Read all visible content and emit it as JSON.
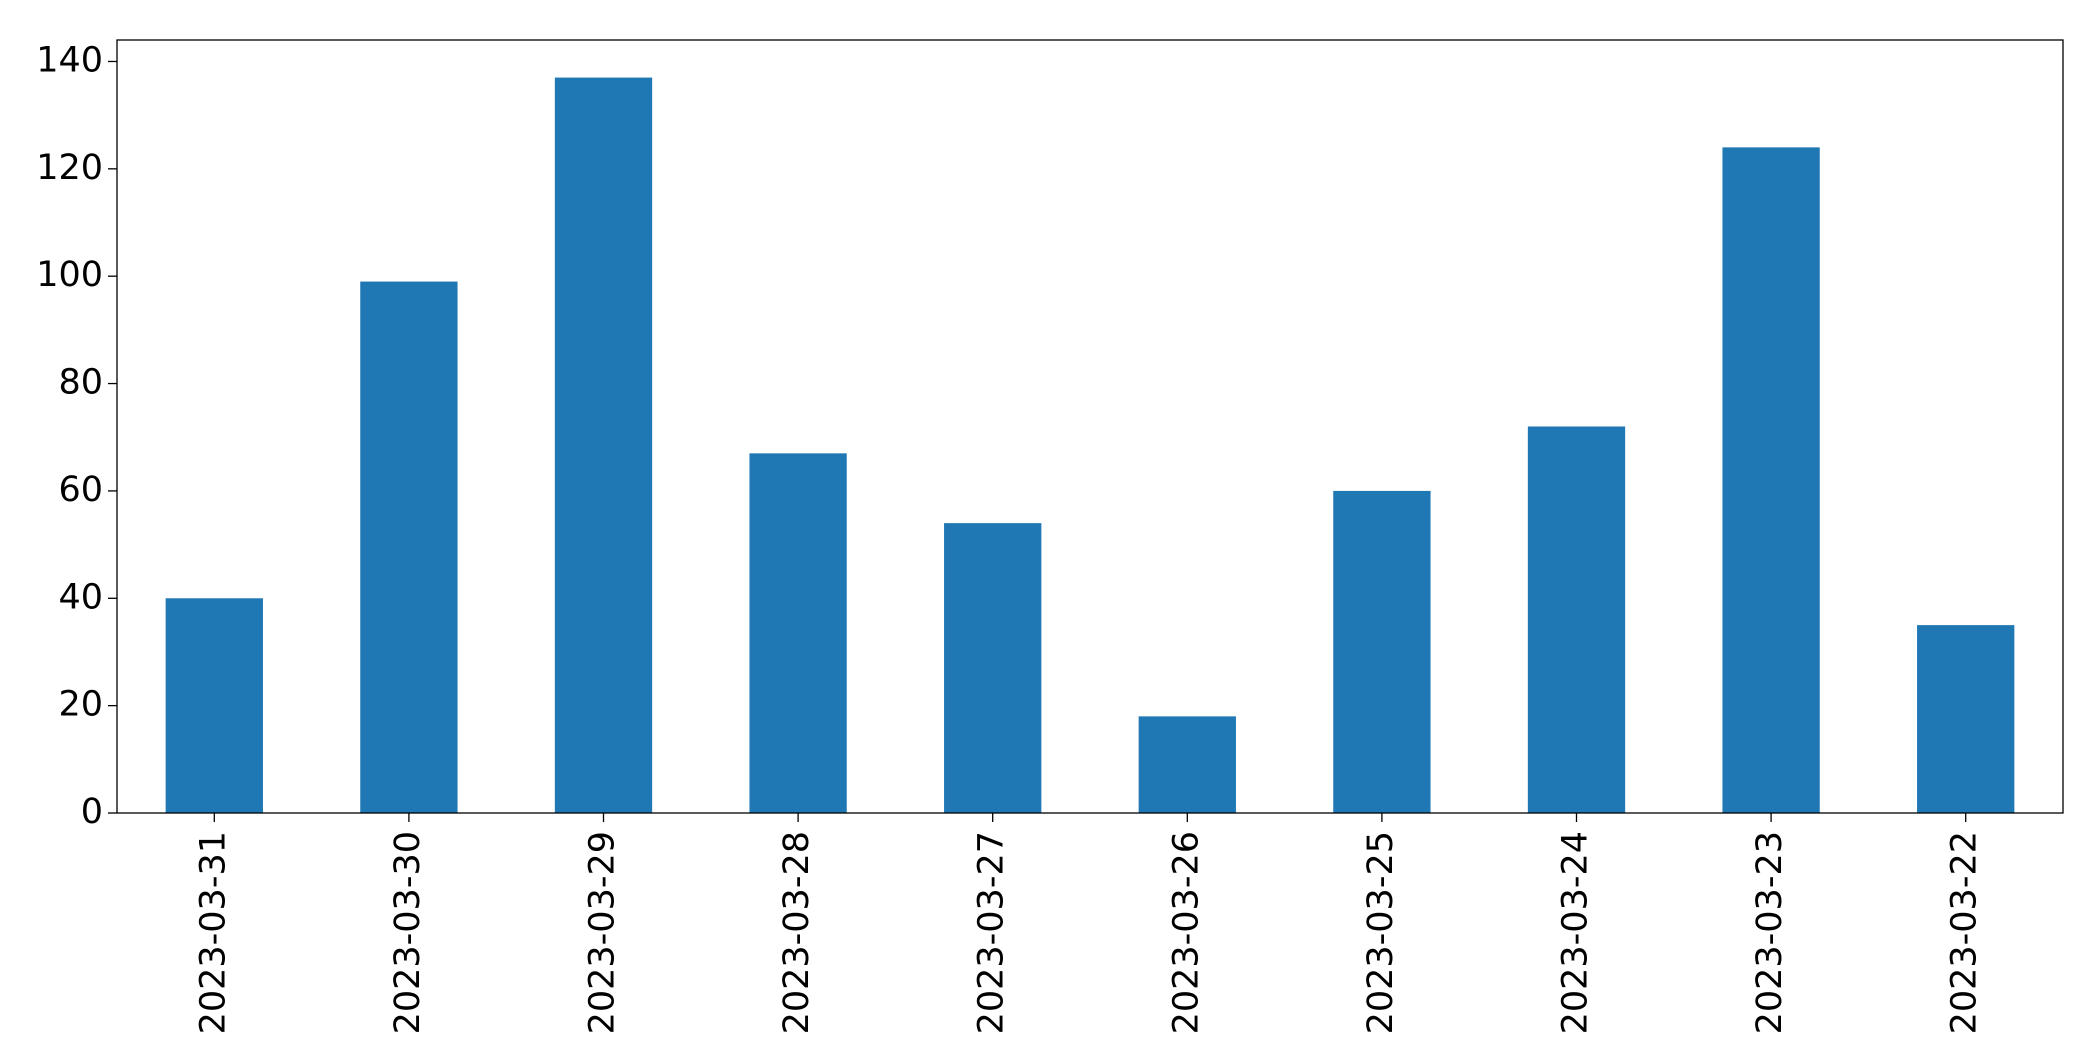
{
  "chart_data": {
    "type": "bar",
    "categories": [
      "2023-03-31",
      "2023-03-30",
      "2023-03-29",
      "2023-03-28",
      "2023-03-27",
      "2023-03-26",
      "2023-03-25",
      "2023-03-24",
      "2023-03-23",
      "2023-03-22"
    ],
    "values": [
      40,
      99,
      137,
      67,
      54,
      18,
      60,
      72,
      124,
      35
    ],
    "color": "#1f77b4",
    "ylim": [
      0,
      144
    ],
    "yticks": [
      0,
      20,
      40,
      60,
      80,
      100,
      120,
      140
    ],
    "grid": false
  }
}
